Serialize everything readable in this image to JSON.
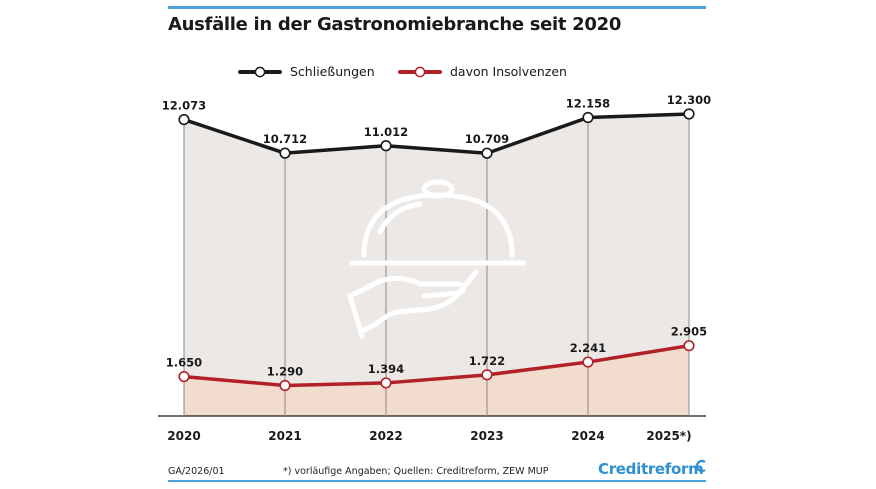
{
  "header": {
    "title": "Ausfälle in der Gastronomiebranche seit 2020"
  },
  "chart_data": {
    "type": "line",
    "title": "Ausfälle in der Gastronomiebranche seit 2020",
    "categories": [
      "2020",
      "2021",
      "2022",
      "2023",
      "2024",
      "2025*)"
    ],
    "series": [
      {
        "name": "Schließungen",
        "values": [
          12073,
          10712,
          11012,
          10709,
          12158,
          12300
        ],
        "labels": [
          "12.073",
          "10.712",
          "11.012",
          "10.709",
          "12.158",
          "12.300"
        ],
        "color": "#1a1a1a"
      },
      {
        "name": "davon Insolvenzen",
        "values": [
          1650,
          1290,
          1394,
          1722,
          2241,
          2905
        ],
        "labels": [
          "1.650",
          "1.290",
          "1.394",
          "1.722",
          "2.241",
          "2.905"
        ],
        "color": "#b22028"
      }
    ],
    "ylim": [
      0,
      13000
    ],
    "xlabel": "",
    "ylabel": "",
    "grid": false,
    "legend": "top"
  },
  "colors": {
    "accent": "#4aa3d8",
    "upper_fill": "#ece8e5",
    "lower_fill": "#f1dccd",
    "brand": "#2f8fd0"
  },
  "footer": {
    "code": "GA/2026/01",
    "note": "*) vorläufige Angaben; Quellen: Creditreform, ZEW MUP",
    "brand": "Creditreform"
  },
  "icons": {
    "illustration": "cloche-tray-icon",
    "brand": "creditreform-logo-icon"
  }
}
